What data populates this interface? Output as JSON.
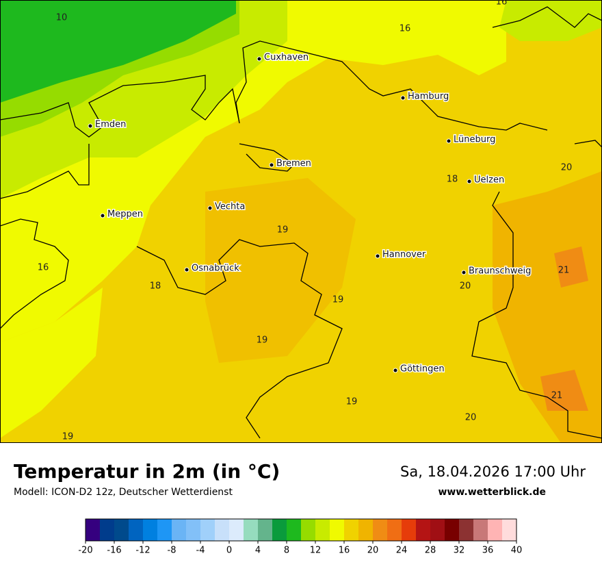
{
  "map": {
    "cities": [
      "Cuxhaven",
      "Hamburg",
      "Emden",
      "Bremen",
      "Lüneburg",
      "Uelzen",
      "Vechta",
      "Meppen",
      "Hannover",
      "Osnabrück",
      "Braunschweig",
      "Göttingen"
    ],
    "temperature_labels": [
      10,
      16,
      16,
      20,
      18,
      19,
      16,
      21,
      18,
      20,
      19,
      19,
      19,
      21,
      20,
      19
    ]
  },
  "legend": {
    "title": "Temperatur in 2m (in °C)",
    "subtitle": "Modell: ICON-D2 12z, Deutscher Wetterdienst",
    "datetime": "Sa, 18.04.2026 17:00 Uhr",
    "source": "www.wetterblick.de"
  },
  "colorbar": {
    "range": [
      -20,
      40
    ],
    "ticks": [
      -20,
      -16,
      -12,
      -8,
      -4,
      0,
      4,
      8,
      12,
      16,
      20,
      24,
      28,
      32,
      36,
      40
    ],
    "colors": [
      "#35007f",
      "#003c8c",
      "#004a8c",
      "#0064c0",
      "#0080e0",
      "#1e96f5",
      "#6ab4f5",
      "#82c0f8",
      "#a0d0fa",
      "#c8e0fa",
      "#dcebfc",
      "#96dcbe",
      "#64b48c",
      "#0a9b3c",
      "#1eb91e",
      "#96dc00",
      "#c8eb00",
      "#f0fa00",
      "#f0d200",
      "#f0b400",
      "#f08c14",
      "#f06e14",
      "#e63c0a",
      "#b41414",
      "#a00f14",
      "#780000",
      "#8c3232",
      "#c87878",
      "#ffb4b4",
      "#ffdcdc"
    ]
  }
}
